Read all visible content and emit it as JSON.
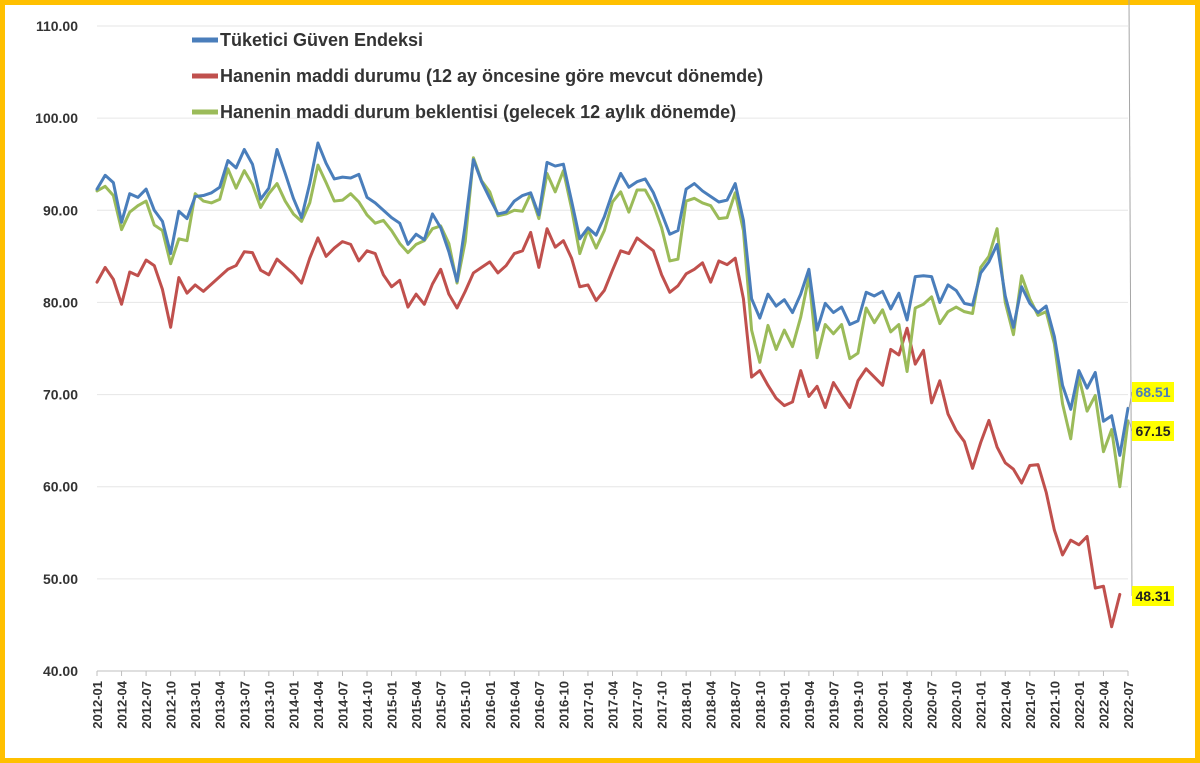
{
  "chart_data": {
    "type": "line",
    "title": "",
    "xlabel": "",
    "ylabel": "",
    "ylim": [
      40,
      110
    ],
    "yticks": [
      "40.00",
      "50.00",
      "60.00",
      "70.00",
      "80.00",
      "90.00",
      "100.00",
      "110.00"
    ],
    "xtick_labels": [
      "2012-01",
      "2012-04",
      "2012-07",
      "2012-10",
      "2013-01",
      "2013-04",
      "2013-07",
      "2013-10",
      "2014-01",
      "2014-04",
      "2014-07",
      "2014-10",
      "2015-01",
      "2015-04",
      "2015-07",
      "2015-10",
      "2016-01",
      "2016-04",
      "2016-07",
      "2016-10",
      "2017-01",
      "2017-04",
      "2017-07",
      "2017-10",
      "2018-01",
      "2018-04",
      "2018-07",
      "2018-10",
      "2019-01",
      "2019-04",
      "2019-07",
      "2019-10",
      "2020-01",
      "2020-04",
      "2020-07",
      "2020-10",
      "2021-01",
      "2021-04",
      "2021-07",
      "2021-10",
      "2022-01",
      "2022-04",
      "2022-07"
    ],
    "x_start": "2012-01",
    "n_months": 127,
    "legend_position": "top-left",
    "series": [
      {
        "name": "Tüketici Güven Endeksi",
        "color": "#4A7EBB",
        "values": [
          92.3,
          93.8,
          93.0,
          88.7,
          91.8,
          91.4,
          92.3,
          90.0,
          88.8,
          85.3,
          89.9,
          89.1,
          91.5,
          91.6,
          91.9,
          92.5,
          95.4,
          94.6,
          96.6,
          95.0,
          91.2,
          92.4,
          96.6,
          94.0,
          91.3,
          89.2,
          92.9,
          97.3,
          95.1,
          93.4,
          93.6,
          93.5,
          93.9,
          91.4,
          90.8,
          90.0,
          89.2,
          88.6,
          86.3,
          87.4,
          86.8,
          89.6,
          88.1,
          85.5,
          82.3,
          88.4,
          95.5,
          93.1,
          91.3,
          89.6,
          89.8,
          91.0,
          91.6,
          91.9,
          89.5,
          95.2,
          94.8,
          95.0,
          91.0,
          86.9,
          88.1,
          87.3,
          89.3,
          91.9,
          94.0,
          92.5,
          93.1,
          93.4,
          91.9,
          89.7,
          87.4,
          87.8,
          92.3,
          92.9,
          92.1,
          91.5,
          90.9,
          91.1,
          92.9,
          88.9,
          80.4,
          78.3,
          80.9,
          79.6,
          80.3,
          78.9,
          80.9,
          83.6,
          77.0,
          79.9,
          78.9,
          79.5,
          77.6,
          78.0,
          81.1,
          80.7,
          81.2,
          79.3,
          81.0,
          78.1,
          82.8,
          82.9,
          82.8,
          80.0,
          81.9,
          81.3,
          79.9,
          79.7,
          83.2,
          84.4,
          86.3,
          80.7,
          77.3,
          81.7,
          79.9,
          78.9,
          79.6,
          76.3,
          71.0,
          68.4,
          72.6,
          70.7,
          72.4,
          67.1,
          67.7,
          63.4,
          68.51
        ]
      },
      {
        "name": "Hanenin maddi durumu (12 ay öncesine göre mevcut dönemde)",
        "color": "#C0504D",
        "values": [
          82.2,
          83.8,
          82.5,
          79.8,
          83.3,
          82.9,
          84.6,
          84.0,
          81.4,
          77.3,
          82.7,
          81.0,
          81.9,
          81.2,
          82.0,
          82.8,
          83.6,
          84.0,
          85.5,
          85.4,
          83.5,
          83.0,
          84.7,
          83.9,
          83.1,
          82.1,
          84.8,
          87.0,
          85.0,
          85.9,
          86.6,
          86.3,
          84.5,
          85.6,
          85.3,
          83.0,
          81.7,
          82.4,
          79.5,
          80.9,
          79.8,
          82.0,
          83.6,
          80.9,
          79.4,
          81.2,
          83.2,
          83.8,
          84.4,
          83.2,
          84.0,
          85.3,
          85.6,
          87.6,
          83.8,
          88.0,
          86.0,
          86.7,
          84.8,
          81.7,
          81.9,
          80.2,
          81.3,
          83.5,
          85.6,
          85.3,
          87.0,
          86.3,
          85.6,
          83.0,
          81.1,
          81.8,
          83.1,
          83.6,
          84.3,
          82.2,
          84.5,
          84.1,
          84.8,
          80.4,
          71.9,
          72.6,
          71.0,
          69.6,
          68.8,
          69.2,
          72.6,
          69.8,
          70.9,
          68.6,
          71.3,
          69.9,
          68.6,
          71.5,
          72.8,
          71.9,
          71.0,
          74.9,
          74.3,
          77.2,
          73.3,
          74.8,
          69.1,
          71.5,
          67.9,
          66.1,
          64.9,
          62.0,
          64.8,
          67.2,
          64.3,
          62.6,
          61.9,
          60.4,
          62.3,
          62.4,
          59.4,
          55.3,
          52.6,
          54.2,
          53.7,
          54.6,
          49.0,
          49.2,
          44.8,
          48.31
        ]
      },
      {
        "name": "Hanenin maddi durum beklentisi (gelecek 12 aylık dönemde)",
        "color": "#9BBB59",
        "values": [
          92.1,
          92.6,
          91.6,
          87.9,
          89.8,
          90.5,
          91.0,
          88.4,
          87.8,
          84.2,
          86.9,
          86.7,
          91.8,
          91.0,
          90.8,
          91.2,
          94.5,
          92.4,
          94.3,
          92.8,
          90.3,
          91.8,
          92.9,
          91.0,
          89.6,
          88.8,
          90.8,
          94.9,
          93.0,
          91.0,
          91.1,
          91.8,
          90.9,
          89.5,
          88.6,
          88.9,
          87.8,
          86.4,
          85.4,
          86.3,
          86.7,
          88.0,
          88.3,
          86.4,
          82.1,
          86.6,
          95.7,
          93.2,
          92.0,
          89.4,
          89.6,
          90.0,
          89.9,
          91.8,
          89.1,
          94.0,
          92.0,
          94.3,
          90.2,
          85.3,
          87.9,
          85.9,
          87.8,
          90.9,
          92.0,
          89.8,
          92.2,
          92.2,
          90.6,
          88.1,
          84.5,
          84.7,
          91.0,
          91.3,
          90.8,
          90.5,
          89.1,
          89.2,
          91.9,
          87.8,
          77.0,
          73.5,
          77.5,
          74.9,
          77.0,
          75.2,
          78.4,
          82.8,
          74.0,
          77.6,
          76.6,
          77.6,
          73.9,
          74.5,
          79.4,
          77.8,
          79.2,
          76.8,
          77.6,
          72.5,
          79.4,
          79.8,
          80.6,
          77.7,
          79.0,
          79.5,
          79.0,
          78.8,
          83.8,
          85.0,
          88.0,
          80.0,
          76.5,
          82.9,
          80.4,
          78.6,
          79.0,
          75.5,
          69.0,
          65.2,
          71.9,
          68.2,
          69.9,
          63.8,
          66.2,
          60.0,
          67.15
        ]
      }
    ],
    "end_labels": [
      {
        "value": "68.51",
        "color": "#4A7EBB"
      },
      {
        "value": "67.15",
        "color": "#222222"
      },
      {
        "value": "48.31",
        "color": "#222222"
      }
    ]
  }
}
